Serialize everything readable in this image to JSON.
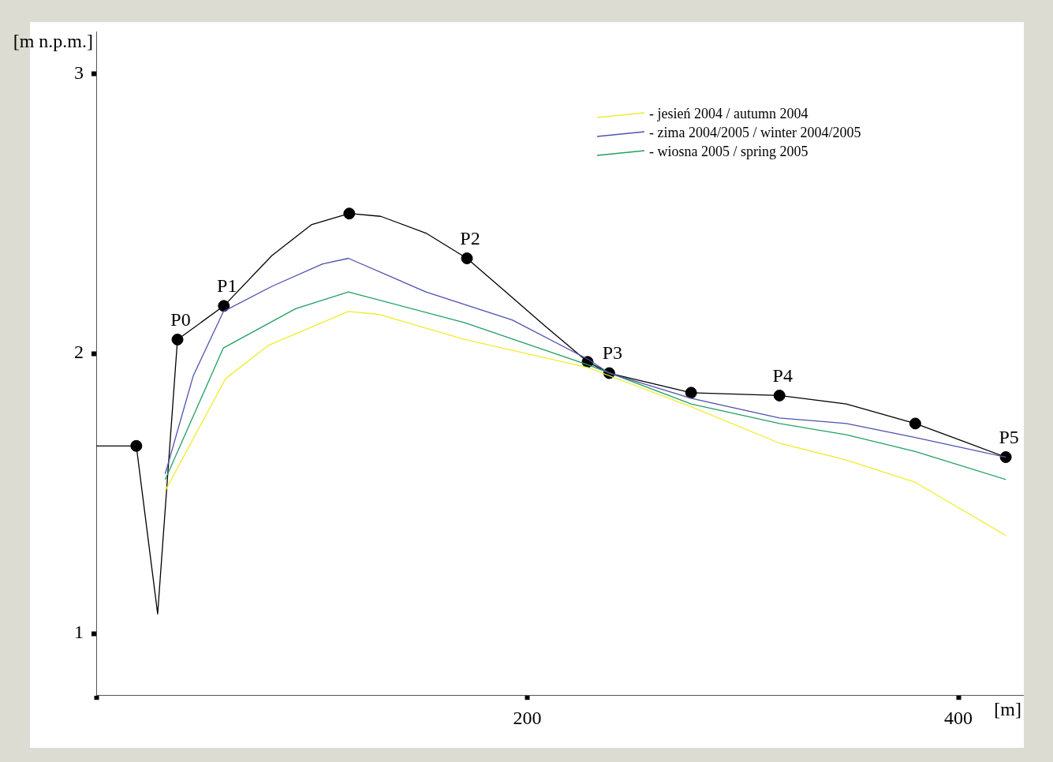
{
  "chart_data": {
    "type": "line",
    "ylabel": "[m n.p.m.]",
    "xlabel": "[m]",
    "xlim": [
      0,
      430
    ],
    "xticks": [
      {
        "value": 0,
        "label": null
      },
      200,
      400
    ],
    "ylim": [
      0.78,
      3.15
    ],
    "yticks": [
      1,
      2,
      3
    ],
    "grid": false,
    "legend": "top right",
    "marker": "none",
    "line_style": "solid",
    "series": [
      {
        "name": "- jesień 2004 / autumn 2004",
        "color": "#f0ec30",
        "x": [
          32,
          60,
          80,
          117,
          131,
          171,
          228,
          276,
          317,
          348,
          380,
          422
        ],
        "values": [
          1.51,
          1.91,
          2.03,
          2.15,
          2.14,
          2.05,
          1.95,
          1.81,
          1.68,
          1.62,
          1.54,
          1.35
        ]
      },
      {
        "name": "- zima 2004/2005 / winter 2004/2005",
        "color": "#5050b0",
        "x": [
          32,
          45,
          59,
          81.5,
          105,
          117,
          153,
          193,
          228,
          238,
          276,
          317,
          348,
          380,
          422
        ],
        "values": [
          1.57,
          1.92,
          2.15,
          2.24,
          2.32,
          2.34,
          2.22,
          2.12,
          1.98,
          1.93,
          1.84,
          1.77,
          1.75,
          1.7,
          1.63
        ]
      },
      {
        "name": "- wiosna 2005 / spring 2005",
        "color": "#20a060",
        "x": [
          32,
          59,
          92.5,
          117,
          171,
          228,
          276,
          317,
          348,
          380,
          422
        ],
        "values": [
          1.55,
          2.02,
          2.16,
          2.22,
          2.11,
          1.96,
          1.82,
          1.75,
          1.71,
          1.65,
          1.55
        ]
      },
      {
        "color": "#000000",
        "x": [
          0,
          18.6,
          28.5,
          37.7,
          59.2,
          81.5,
          99.8,
          117.4,
          132,
          153,
          172,
          190,
          208,
          228,
          238,
          276,
          317,
          348,
          380,
          401,
          422
        ],
        "values": [
          1.67,
          1.67,
          1.07,
          2.05,
          2.17,
          2.35,
          2.46,
          2.5,
          2.49,
          2.43,
          2.34,
          2.22,
          2.1,
          1.97,
          1.93,
          1.86,
          1.85,
          1.82,
          1.75,
          1.69,
          1.63
        ]
      },
      {
        "type": "scatter",
        "marker": "circle",
        "color": "#000000",
        "x": [
          18.6,
          37.7,
          59.2,
          117.4,
          172,
          228,
          238,
          276,
          317,
          380,
          422
        ],
        "values": [
          1.67,
          2.05,
          2.17,
          2.5,
          2.34,
          1.97,
          1.93,
          1.86,
          1.85,
          1.75,
          1.63
        ]
      }
    ],
    "annotations": [
      {
        "text": "P0",
        "x": 37.7,
        "y": 2.05
      },
      {
        "text": "P1",
        "x": 59.2,
        "y": 2.17
      },
      {
        "text": "P2",
        "x": 172,
        "y": 2.34
      },
      {
        "text": "P3",
        "x": 238,
        "y": 1.93
      },
      {
        "text": "P4",
        "x": 317,
        "y": 1.85
      },
      {
        "text": "P5",
        "x": 422,
        "y": 1.63
      }
    ]
  }
}
